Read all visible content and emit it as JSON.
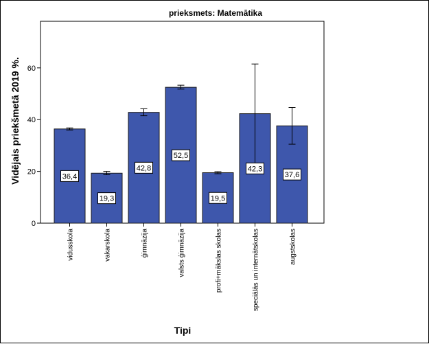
{
  "chart_data": {
    "type": "bar",
    "title": "prieksmets: Matemātika",
    "xlabel": "Tipi",
    "ylabel": "Vidējais priekšmetā 2019 %.",
    "ylim": [
      0,
      78
    ],
    "yticks": [
      0,
      20,
      40,
      60
    ],
    "grid": false,
    "categories": [
      "vidusskola",
      "vakarskola",
      "ģimnāzija",
      "valsts ģimnāzija",
      "profi+mākslas skolas",
      "speciālās un internātskolas",
      "augstskolas"
    ],
    "values": [
      36.4,
      19.3,
      42.8,
      52.5,
      19.5,
      42.3,
      37.6
    ],
    "value_labels": [
      "36,4",
      "19,3",
      "42,8",
      "52,5",
      "19,5",
      "42,3",
      "37,6"
    ],
    "error_low": [
      36.0,
      18.7,
      41.5,
      51.8,
      19.1,
      23.0,
      30.5
    ],
    "error_high": [
      36.8,
      20.0,
      44.2,
      53.3,
      19.9,
      61.5,
      44.7
    ],
    "colors": {
      "bar": "#3e57ac",
      "bar_stroke": "#1a1a1a"
    }
  }
}
